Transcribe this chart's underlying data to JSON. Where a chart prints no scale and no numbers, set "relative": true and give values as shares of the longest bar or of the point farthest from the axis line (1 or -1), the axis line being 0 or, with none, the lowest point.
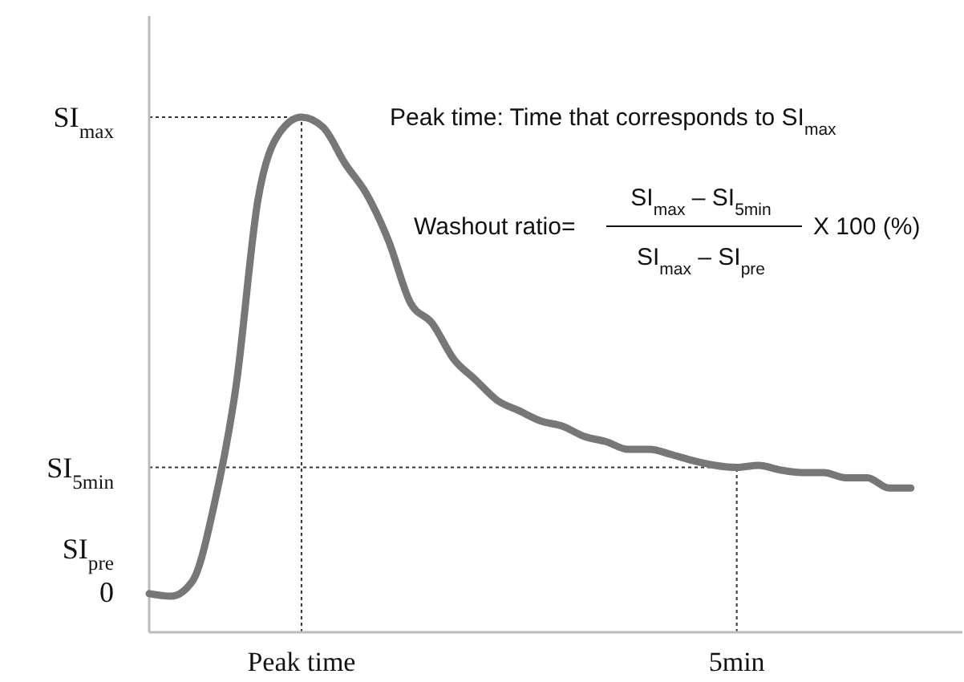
{
  "chart_data": {
    "type": "line",
    "relative": true,
    "categories": [
      null,
      null,
      null,
      null,
      null,
      null,
      null,
      "Peak time",
      null,
      null,
      null,
      null,
      null,
      null,
      null,
      null,
      null,
      null,
      null,
      null,
      null,
      null,
      null,
      null,
      null,
      null,
      null,
      "5min",
      null,
      null,
      null,
      null,
      null,
      null,
      null,
      null,
      null,
      null
    ],
    "series": [
      {
        "color": "#777777",
        "values": [
          0.075,
          0.07,
          0.1,
          0.25,
          0.48,
          0.84,
          0.97,
          1,
          0.98,
          0.91,
          0.85,
          0.76,
          0.64,
          0.6,
          0.53,
          0.49,
          0.45,
          0.43,
          0.41,
          0.4,
          0.38,
          0.37,
          0.355,
          0.355,
          0.345,
          0.333,
          0.324,
          0.32,
          0.324,
          0.315,
          0.31,
          0.31,
          0.3,
          0.3,
          0.28,
          0.28,
          null,
          null
        ]
      }
    ],
    "ref_lines": [
      {
        "axis": "y",
        "value": 1,
        "label": "SI$_{max}$",
        "line_style": "dotted"
      },
      {
        "axis": "y",
        "value": 0.32,
        "label": "SI$_{5min}$",
        "line_style": "dotted"
      },
      {
        "axis": "x",
        "value": "Peak time",
        "line_style": "dotted"
      },
      {
        "axis": "x",
        "value": "5min",
        "line_style": "dotted"
      }
    ],
    "annotations": [
      "SI$_{pre}$",
      "0",
      "Peak time: Time that corresponds to SI$_{max}$",
      "Washout ratio=",
      "SI$_{max}$ – SI$_{5min}$",
      "SI$_{max}$ – SI$_{pre}$",
      "X 100 (%)"
    ],
    "grid": false,
    "marker": "none",
    "line_style": "solid"
  }
}
